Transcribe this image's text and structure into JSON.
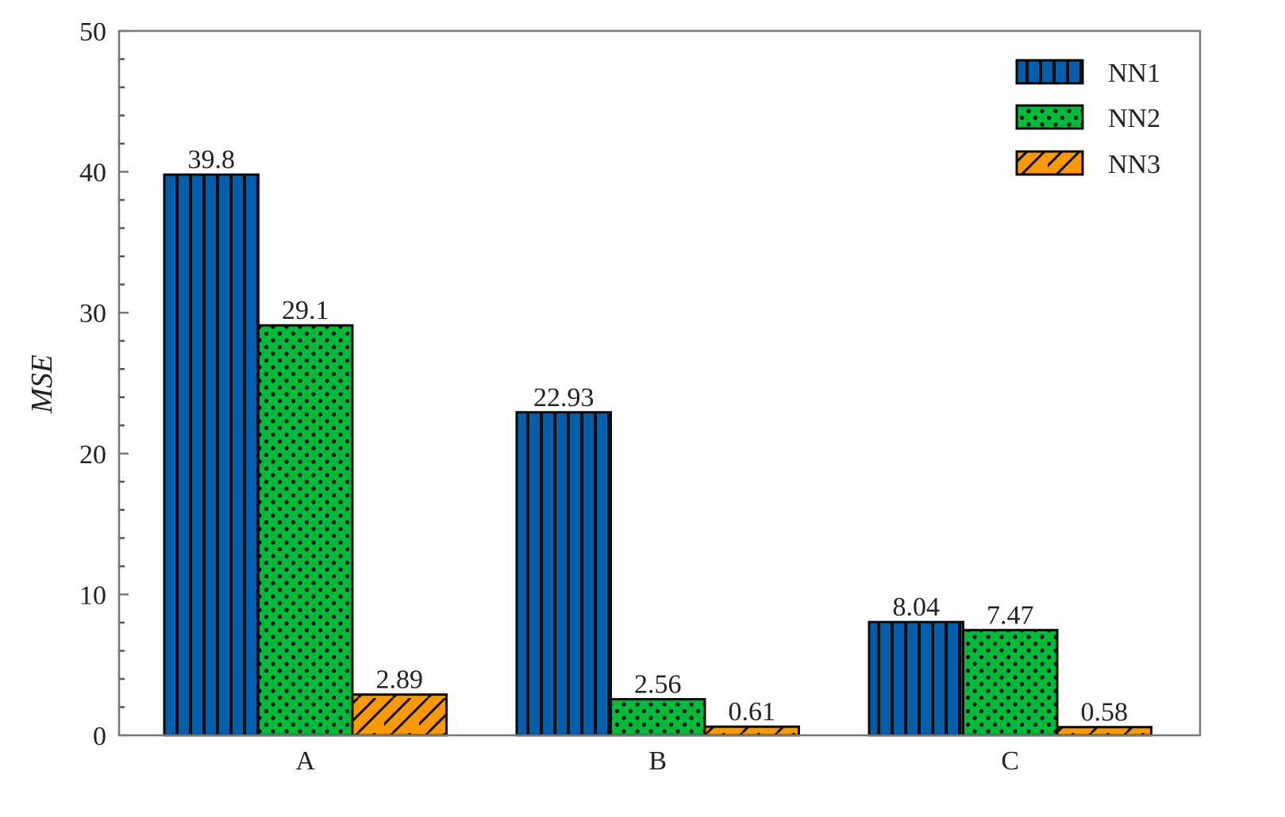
{
  "chart_data": {
    "type": "bar",
    "title": "",
    "xlabel": "",
    "ylabel": "MSE",
    "ylim": [
      0,
      50
    ],
    "yticks": [
      0,
      10,
      20,
      30,
      40,
      50
    ],
    "minor_ticks_per_major": 5,
    "grid": false,
    "legend_position": "upper right",
    "categories": [
      "A",
      "B",
      "C"
    ],
    "series": [
      {
        "name": "NN1",
        "values": [
          39.8,
          22.93,
          8.04
        ],
        "labels": [
          "39.8",
          "22.93",
          "8.04"
        ],
        "color": "#005eac",
        "pattern": "vertical-lines"
      },
      {
        "name": "NN2",
        "values": [
          29.1,
          2.56,
          7.47
        ],
        "labels": [
          "29.1",
          "2.56",
          "7.47"
        ],
        "color": "#00bb3a",
        "pattern": "dots"
      },
      {
        "name": "NN3",
        "values": [
          2.89,
          0.61,
          0.58
        ],
        "labels": [
          "2.89",
          "0.61",
          "0.58"
        ],
        "color": "#ff9900",
        "pattern": "diagonal-hatch"
      }
    ]
  },
  "axis": {
    "y_label": "MSE",
    "y_ticks": [
      "0",
      "10",
      "20",
      "30",
      "40",
      "50"
    ],
    "x_ticks": [
      "A",
      "B",
      "C"
    ]
  },
  "legend": {
    "items": [
      "NN1",
      "NN2",
      "NN3"
    ]
  }
}
